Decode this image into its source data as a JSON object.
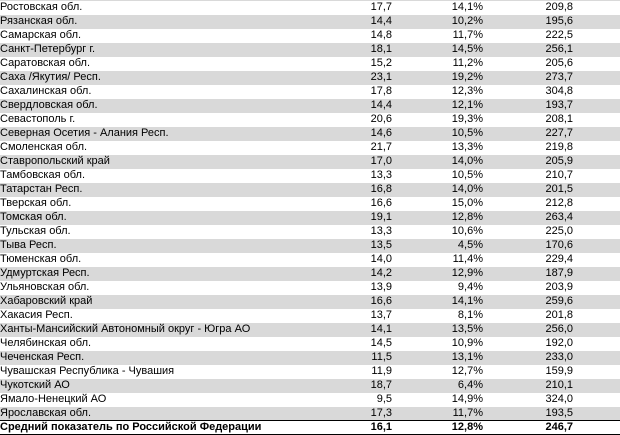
{
  "colors": {
    "row_alternate_fill": "#d9d9d9",
    "summary_border": "#000000",
    "top_hairline": "#d9d9d9",
    "text": "#000000"
  },
  "table": {
    "rows": [
      {
        "name": "Ростовская обл.",
        "value": "17,7",
        "percent": "14,1%",
        "total": "209,8"
      },
      {
        "name": "Рязанская обл.",
        "value": "14,4",
        "percent": "10,2%",
        "total": "195,6"
      },
      {
        "name": "Самарская обл.",
        "value": "14,8",
        "percent": "11,7%",
        "total": "222,5"
      },
      {
        "name": "Санкт-Петербург г.",
        "value": "18,1",
        "percent": "14,5%",
        "total": "256,1"
      },
      {
        "name": "Саратовская обл.",
        "value": "15,2",
        "percent": "11,2%",
        "total": "205,6"
      },
      {
        "name": "Саха /Якутия/ Респ.",
        "value": "23,1",
        "percent": "19,2%",
        "total": "273,7"
      },
      {
        "name": "Сахалинская обл.",
        "value": "17,8",
        "percent": "12,3%",
        "total": "304,8"
      },
      {
        "name": "Свердловская обл.",
        "value": "14,4",
        "percent": "12,1%",
        "total": "193,7"
      },
      {
        "name": "Севастополь г.",
        "value": "20,6",
        "percent": "19,3%",
        "total": "208,1"
      },
      {
        "name": "Северная Осетия - Алания Респ.",
        "value": "14,6",
        "percent": "10,5%",
        "total": "227,7"
      },
      {
        "name": "Смоленская обл.",
        "value": "21,7",
        "percent": "13,3%",
        "total": "219,8"
      },
      {
        "name": "Ставропольский край",
        "value": "17,0",
        "percent": "14,0%",
        "total": "205,9"
      },
      {
        "name": "Тамбовская обл.",
        "value": "13,3",
        "percent": "10,5%",
        "total": "210,7"
      },
      {
        "name": "Татарстан Респ.",
        "value": "16,8",
        "percent": "14,0%",
        "total": "201,5"
      },
      {
        "name": "Тверская обл.",
        "value": "16,6",
        "percent": "15,0%",
        "total": "212,8"
      },
      {
        "name": "Томская обл.",
        "value": "19,1",
        "percent": "12,8%",
        "total": "263,4"
      },
      {
        "name": "Тульская обл.",
        "value": "13,3",
        "percent": "10,6%",
        "total": "225,0"
      },
      {
        "name": "Тыва Респ.",
        "value": "13,5",
        "percent": "4,5%",
        "total": "170,6"
      },
      {
        "name": "Тюменская обл.",
        "value": "14,0",
        "percent": "11,4%",
        "total": "229,4"
      },
      {
        "name": "Удмуртская Респ.",
        "value": "14,2",
        "percent": "12,9%",
        "total": "187,9"
      },
      {
        "name": "Ульяновская обл.",
        "value": "13,9",
        "percent": "9,4%",
        "total": "203,9"
      },
      {
        "name": "Хабаровский край",
        "value": "16,6",
        "percent": "14,1%",
        "total": "259,6"
      },
      {
        "name": "Хакасия Респ.",
        "value": "13,7",
        "percent": "8,1%",
        "total": "201,8"
      },
      {
        "name": "Ханты-Мансийский Автономный округ - Югра АО",
        "value": "14,1",
        "percent": "13,5%",
        "total": "256,0"
      },
      {
        "name": "Челябинская обл.",
        "value": "14,5",
        "percent": "10,9%",
        "total": "192,0"
      },
      {
        "name": "Чеченская Респ.",
        "value": "11,5",
        "percent": "13,1%",
        "total": "233,0"
      },
      {
        "name": "Чувашская Республика - Чувашия",
        "value": "11,9",
        "percent": "12,7%",
        "total": "159,9"
      },
      {
        "name": "Чукотский АО",
        "value": "18,7",
        "percent": "6,4%",
        "total": "210,1"
      },
      {
        "name": "Ямало-Ненецкий АО",
        "value": "9,5",
        "percent": "14,9%",
        "total": "324,0"
      },
      {
        "name": "Ярославская обл.",
        "value": "17,3",
        "percent": "11,7%",
        "total": "193,5"
      }
    ],
    "summary": {
      "name": "Средний показатель по Российской Федерации",
      "value": "16,1",
      "percent": "12,8%",
      "total": "246,7"
    }
  }
}
